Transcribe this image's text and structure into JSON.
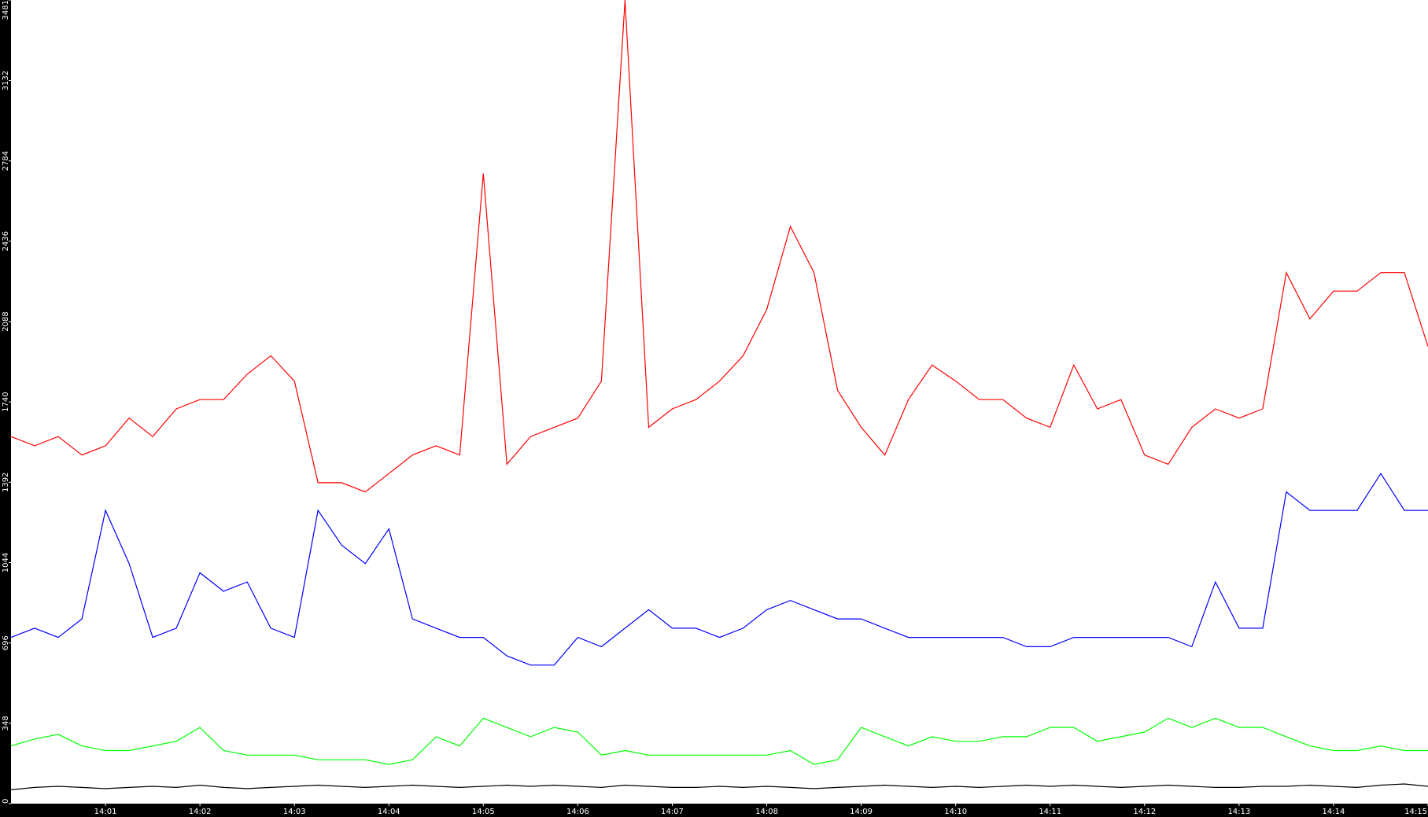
{
  "chart_data": {
    "type": "line",
    "x": [
      0,
      0.25,
      0.5,
      0.75,
      1,
      1.25,
      1.5,
      1.75,
      2,
      2.25,
      2.5,
      2.75,
      3,
      3.25,
      3.5,
      3.75,
      4,
      4.25,
      4.5,
      4.75,
      5,
      5.25,
      5.5,
      5.75,
      6,
      6.25,
      6.5,
      6.75,
      7,
      7.25,
      7.5,
      7.75,
      8,
      8.25,
      8.5,
      8.75,
      9,
      9.25,
      9.5,
      9.75,
      10,
      10.25,
      10.5,
      10.75,
      11,
      11.25,
      11.5,
      11.75,
      12,
      12.25,
      12.5,
      12.75,
      13,
      13.25,
      13.5,
      13.75,
      14,
      14.25,
      14.5,
      14.75,
      15
    ],
    "xlim": [
      0,
      15
    ],
    "xticks": [
      {
        "value": 1,
        "label": "14:01"
      },
      {
        "value": 2,
        "label": "14:02"
      },
      {
        "value": 3,
        "label": "14:03"
      },
      {
        "value": 4,
        "label": "14:04"
      },
      {
        "value": 5,
        "label": "14:05"
      },
      {
        "value": 6,
        "label": "14:06"
      },
      {
        "value": 7,
        "label": "14:07"
      },
      {
        "value": 8,
        "label": "14:08"
      },
      {
        "value": 9,
        "label": "14:09"
      },
      {
        "value": 10,
        "label": "14:10"
      },
      {
        "value": 11,
        "label": "14:11"
      },
      {
        "value": 12,
        "label": "14:12"
      },
      {
        "value": 13,
        "label": "14:13"
      },
      {
        "value": 14,
        "label": "14:14"
      },
      {
        "value": 15,
        "label": "14:15"
      }
    ],
    "ylim": [
      0,
      3481
    ],
    "yticks": [
      0,
      348,
      696,
      1044,
      1392,
      1740,
      2088,
      2436,
      2784,
      3132,
      3481
    ],
    "grid": false,
    "series": [
      {
        "color": "#ff0000",
        "values": [
          1590,
          1550,
          1590,
          1510,
          1550,
          1670,
          1590,
          1710,
          1750,
          1750,
          1860,
          1940,
          1830,
          1390,
          1390,
          1350,
          1430,
          1510,
          1550,
          1510,
          2730,
          1470,
          1590,
          1630,
          1670,
          1830,
          3481,
          1630,
          1710,
          1750,
          1830,
          1940,
          2140,
          2500,
          2300,
          1790,
          1630,
          1510,
          1750,
          1900,
          1830,
          1750,
          1750,
          1670,
          1630,
          1900,
          1710,
          1750,
          1510,
          1470,
          1630,
          1710,
          1670,
          1710,
          2300,
          2100,
          2220,
          2220,
          2300,
          2300,
          1980
        ]
      },
      {
        "color": "#0000ff",
        "values": [
          720,
          760,
          720,
          800,
          1270,
          1040,
          720,
          760,
          1000,
          920,
          960,
          760,
          720,
          1270,
          1120,
          1040,
          1190,
          800,
          760,
          720,
          720,
          640,
          600,
          600,
          720,
          680,
          760,
          840,
          760,
          760,
          720,
          760,
          840,
          880,
          840,
          800,
          800,
          760,
          720,
          720,
          720,
          720,
          720,
          680,
          680,
          720,
          720,
          720,
          720,
          720,
          680,
          960,
          760,
          760,
          1350,
          1270,
          1270,
          1270,
          1430,
          1270,
          1270
        ]
      },
      {
        "color": "#00ff00",
        "values": [
          250,
          280,
          300,
          250,
          230,
          230,
          250,
          270,
          330,
          230,
          210,
          210,
          210,
          190,
          190,
          190,
          170,
          190,
          290,
          250,
          370,
          330,
          290,
          330,
          310,
          210,
          230,
          210,
          210,
          210,
          210,
          210,
          210,
          230,
          170,
          190,
          330,
          290,
          250,
          290,
          270,
          270,
          290,
          290,
          330,
          330,
          270,
          290,
          310,
          370,
          330,
          370,
          330,
          330,
          290,
          250,
          230,
          230,
          250,
          230,
          230
        ]
      },
      {
        "color": "#000000",
        "values": [
          60,
          70,
          75,
          70,
          65,
          70,
          75,
          70,
          80,
          70,
          65,
          70,
          75,
          80,
          75,
          70,
          75,
          80,
          75,
          70,
          75,
          80,
          75,
          80,
          75,
          70,
          80,
          75,
          70,
          70,
          75,
          70,
          75,
          70,
          65,
          70,
          75,
          80,
          75,
          70,
          75,
          70,
          75,
          80,
          75,
          80,
          75,
          70,
          75,
          80,
          75,
          70,
          70,
          75,
          75,
          80,
          75,
          70,
          80,
          85,
          75
        ]
      }
    ]
  }
}
